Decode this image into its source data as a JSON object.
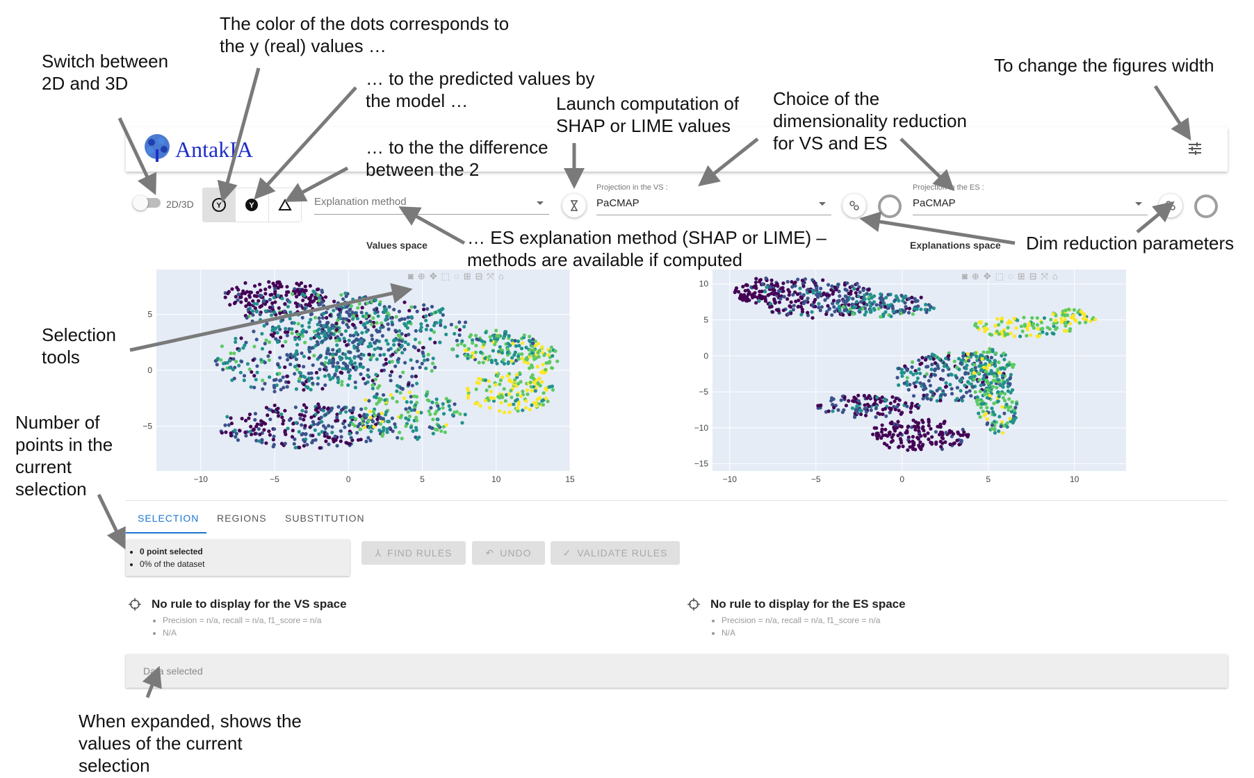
{
  "app": {
    "name": "AntakIA"
  },
  "annotations": {
    "switch": "Switch between\n2D and 3D",
    "color_y": "The color of the dots corresponds to\nthe y (real) values …",
    "color_pred": "… to the predicted values by\nthe model …",
    "color_diff": "… to the the difference\nbetween the 2",
    "launch": "Launch computation of\nSHAP or LIME values",
    "choice": "Choice of the\ndimensionality reduction\nfor VS and ES",
    "fig_width": "To change the figures width",
    "selection_tools": "Selection\ntools",
    "es_method": "… ES explanation method (SHAP or LIME) –\nmethods are available if computed",
    "dim_params": "Dim reduction parameters",
    "num_points": "Number of\npoints in the\ncurrent\nselection",
    "expanded": "When expanded, shows the\nvalues of the current\nselection"
  },
  "toolbar": {
    "toggle_label": "2D/3D",
    "explanation_placeholder": "Explanation method",
    "vs_projection": {
      "label": "Projection in the VS :",
      "value": "PaCMAP"
    },
    "es_projection": {
      "label": "Projection in the ES :",
      "value": "PaCMAP"
    }
  },
  "spaces": {
    "vs_title": "Values space",
    "es_title": "Explanations space"
  },
  "tabs": [
    "SELECTION",
    "REGIONS",
    "SUBSTITUTION"
  ],
  "selection": {
    "line1": "0 point selected",
    "line2": "0% of the dataset"
  },
  "actions": {
    "find": "FIND RULES",
    "undo": "UNDO",
    "validate": "VALIDATE RULES"
  },
  "rules": {
    "vs": {
      "title": "No rule to display for the VS space",
      "metrics": "Precision = n/a, recall = n/a, f1_score = n/a",
      "na": "N/A"
    },
    "es": {
      "title": "No rule to display for the ES space",
      "metrics": "Precision = n/a, recall = n/a, f1_score = n/a",
      "na": "N/A"
    }
  },
  "data_bar": "Data selected",
  "chart_data": [
    {
      "type": "scatter",
      "name": "Values space",
      "x_ticks": [
        "−10",
        "−5",
        "0",
        "5",
        "10",
        "15"
      ],
      "y_ticks": [
        "5",
        "0",
        "−5"
      ],
      "xlim": [
        -13,
        15
      ],
      "ylim": [
        -9,
        9
      ],
      "colorscale": [
        "#440154",
        "#3b528b",
        "#21918c",
        "#5ec962",
        "#fde725"
      ]
    },
    {
      "type": "scatter",
      "name": "Explanations space",
      "x_ticks": [
        "−10",
        "−5",
        "0",
        "5",
        "10"
      ],
      "y_ticks": [
        "10",
        "5",
        "0",
        "−5",
        "−10",
        "−15"
      ],
      "xlim": [
        -11,
        13
      ],
      "ylim": [
        -16,
        12
      ],
      "colorscale": [
        "#440154",
        "#3b528b",
        "#21918c",
        "#5ec962",
        "#fde725"
      ]
    }
  ]
}
